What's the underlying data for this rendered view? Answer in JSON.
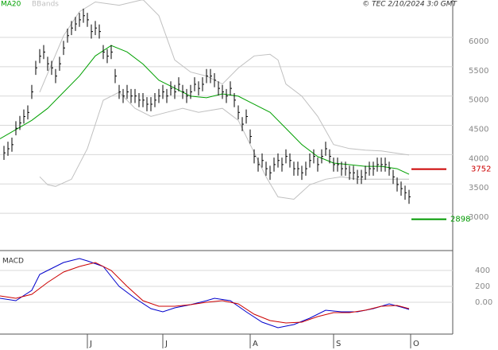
{
  "header": "© TEC 2/10/2024 3:0 GMT",
  "chart_data": [
    {
      "type": "ohlc",
      "xlim": [
        -1,
        113
      ],
      "ylim": [
        2363,
        6638
      ],
      "yticks": [
        3000,
        3500,
        4000,
        4500,
        5000,
        5500,
        6000
      ],
      "grid": true,
      "bar_color": "#000000",
      "high": [
        4150,
        4220,
        4290,
        4570,
        4660,
        4770,
        4840,
        5190,
        5600,
        5800,
        5870,
        5670,
        5600,
        5460,
        5670,
        5940,
        6150,
        6280,
        6350,
        6420,
        6490,
        6420,
        6220,
        6280,
        6220,
        5870,
        5800,
        5870,
        5460,
        5190,
        5120,
        5190,
        5120,
        5120,
        5050,
        5050,
        4980,
        4980,
        5050,
        5120,
        5190,
        5120,
        5250,
        5190,
        5320,
        5190,
        5120,
        5190,
        5320,
        5250,
        5320,
        5460,
        5460,
        5390,
        5250,
        5190,
        5120,
        5250,
        5050,
        4840,
        4640,
        4770,
        4430,
        4090,
        3950,
        4020,
        3880,
        3810,
        3950,
        4020,
        3950,
        4090,
        4020,
        3880,
        3880,
        3810,
        3880,
        4020,
        4090,
        3950,
        4090,
        4220,
        4090,
        3950,
        3950,
        3880,
        3880,
        3810,
        3810,
        3740,
        3740,
        3810,
        3880,
        3880,
        3950,
        3950,
        3950,
        3880,
        3740,
        3610,
        3540,
        3470,
        3400
      ],
      "low": [
        3910,
        3980,
        4050,
        4330,
        4420,
        4530,
        4600,
        4950,
        5360,
        5560,
        5630,
        5430,
        5360,
        5220,
        5430,
        5700,
        5910,
        6040,
        6110,
        6180,
        6250,
        6180,
        5980,
        6040,
        5980,
        5630,
        5560,
        5630,
        5220,
        4950,
        4880,
        4950,
        4880,
        4880,
        4810,
        4810,
        4740,
        4740,
        4810,
        4880,
        4950,
        4880,
        5010,
        4950,
        5080,
        4950,
        4880,
        4950,
        5080,
        5010,
        5080,
        5220,
        5220,
        5150,
        5010,
        4950,
        4880,
        5010,
        4810,
        4600,
        4400,
        4530,
        4190,
        3850,
        3710,
        3780,
        3640,
        3570,
        3710,
        3780,
        3710,
        3850,
        3780,
        3640,
        3640,
        3570,
        3640,
        3780,
        3850,
        3710,
        3850,
        3980,
        3850,
        3710,
        3710,
        3640,
        3640,
        3570,
        3570,
        3500,
        3500,
        3570,
        3640,
        3640,
        3710,
        3710,
        3710,
        3640,
        3500,
        3370,
        3300,
        3230,
        3160
      ],
      "close": [
        4030,
        4100,
        4170,
        4450,
        4540,
        4650,
        4720,
        5070,
        5480,
        5680,
        5750,
        5550,
        5480,
        5340,
        5550,
        5820,
        6030,
        6160,
        6230,
        6300,
        6370,
        6300,
        6100,
        6160,
        6100,
        5750,
        5680,
        5750,
        5340,
        5070,
        5000,
        5070,
        5000,
        5000,
        4930,
        4930,
        4860,
        4860,
        4930,
        5000,
        5070,
        5000,
        5130,
        5070,
        5200,
        5070,
        5000,
        5070,
        5200,
        5130,
        5200,
        5340,
        5340,
        5270,
        5130,
        5070,
        5000,
        5130,
        4930,
        4720,
        4520,
        4650,
        4310,
        3970,
        3830,
        3900,
        3760,
        3690,
        3830,
        3900,
        3830,
        3970,
        3900,
        3760,
        3760,
        3690,
        3760,
        3900,
        3970,
        3830,
        3970,
        4100,
        3970,
        3830,
        3830,
        3760,
        3760,
        3690,
        3690,
        3620,
        3620,
        3690,
        3760,
        3760,
        3830,
        3830,
        3830,
        3760,
        3620,
        3490,
        3420,
        3350,
        3280
      ],
      "ma20": {
        "name": "MA20",
        "color": "#00a000",
        "x": [
          -1,
          7,
          11,
          15,
          19,
          23,
          27,
          31,
          35,
          39,
          43,
          47,
          51,
          55,
          59,
          63,
          67,
          71,
          75,
          79,
          83,
          87,
          91,
          95,
          99,
          102
        ],
        "values": [
          4270,
          4585,
          4790,
          5065,
          5340,
          5684,
          5862,
          5752,
          5546,
          5270,
          5134,
          4997,
          4970,
          5037,
          4997,
          4859,
          4722,
          4447,
          4172,
          3966,
          3856,
          3829,
          3800,
          3800,
          3760,
          3664
        ]
      },
      "bbands": {
        "name": "BBands",
        "color": "#c0c0c0",
        "upper": {
          "x": [
            9,
            15,
            19,
            23,
            29,
            35,
            39,
            43,
            47,
            51,
            55,
            59,
            63,
            67,
            69,
            71,
            75,
            79,
            83,
            87,
            91,
            95,
            102
          ],
          "values": [
            5065,
            6027,
            6439,
            6604,
            6549,
            6645,
            6370,
            5615,
            5409,
            5340,
            5203,
            5477,
            5684,
            5711,
            5615,
            5203,
            4997,
            4653,
            4172,
            4103,
            4076,
            4062,
            3993
          ]
        },
        "lower": {
          "x": [
            9,
            11,
            13,
            17,
            21,
            25,
            29,
            33,
            37,
            41,
            45,
            49,
            55,
            59,
            63,
            66,
            69,
            73,
            77,
            81,
            85,
            89,
            95,
            102
          ],
          "values": [
            3623,
            3485,
            3458,
            3581,
            4103,
            4928,
            5065,
            4790,
            4653,
            4722,
            4790,
            4722,
            4790,
            4584,
            4035,
            3623,
            3279,
            3238,
            3485,
            3581,
            3623,
            3581,
            3581,
            3581
          ]
        }
      },
      "price_tags": [
        {
          "value": 3752,
          "color": "#cc0000"
        },
        {
          "value": 2898,
          "color": "#009900"
        }
      ]
    },
    {
      "type": "line",
      "title": "MACD",
      "xlim": [
        -1,
        113
      ],
      "ylim": [
        -400,
        640
      ],
      "xticks": [
        {
          "value": 21,
          "label": "J"
        },
        {
          "value": 40,
          "label": "J"
        },
        {
          "value": 62,
          "label": "A"
        },
        {
          "value": 83,
          "label": "S"
        },
        {
          "value": 102.4,
          "label": "O"
        }
      ],
      "yticks": [
        {
          "value": 0,
          "label": "0.00"
        },
        200,
        400
      ],
      "grid": true,
      "series": [
        {
          "color": "#0000cc",
          "x": [
            -1,
            3,
            7,
            9,
            11,
            15,
            19,
            21,
            25,
            29,
            33,
            37,
            40,
            43,
            47,
            51,
            53,
            57,
            61,
            65,
            69,
            73,
            77,
            81,
            85,
            89,
            93,
            97,
            100,
            102
          ],
          "values": [
            50,
            20,
            150,
            350,
            400,
            500,
            550,
            520,
            450,
            200,
            50,
            -80,
            -120,
            -70,
            -30,
            20,
            50,
            20,
            -120,
            -250,
            -320,
            -280,
            -200,
            -100,
            -120,
            -120,
            -80,
            -20,
            -60,
            -90
          ]
        },
        {
          "color": "#cc0000",
          "x": [
            -1,
            3,
            7,
            11,
            15,
            19,
            23,
            27,
            31,
            35,
            39,
            43,
            47,
            51,
            55,
            59,
            63,
            67,
            71,
            75,
            79,
            83,
            87,
            91,
            95,
            99,
            102
          ],
          "values": [
            80,
            50,
            100,
            250,
            380,
            450,
            500,
            400,
            200,
            20,
            -50,
            -50,
            -30,
            0,
            20,
            -20,
            -150,
            -230,
            -260,
            -250,
            -180,
            -130,
            -130,
            -100,
            -50,
            -40,
            -80
          ]
        }
      ]
    }
  ]
}
